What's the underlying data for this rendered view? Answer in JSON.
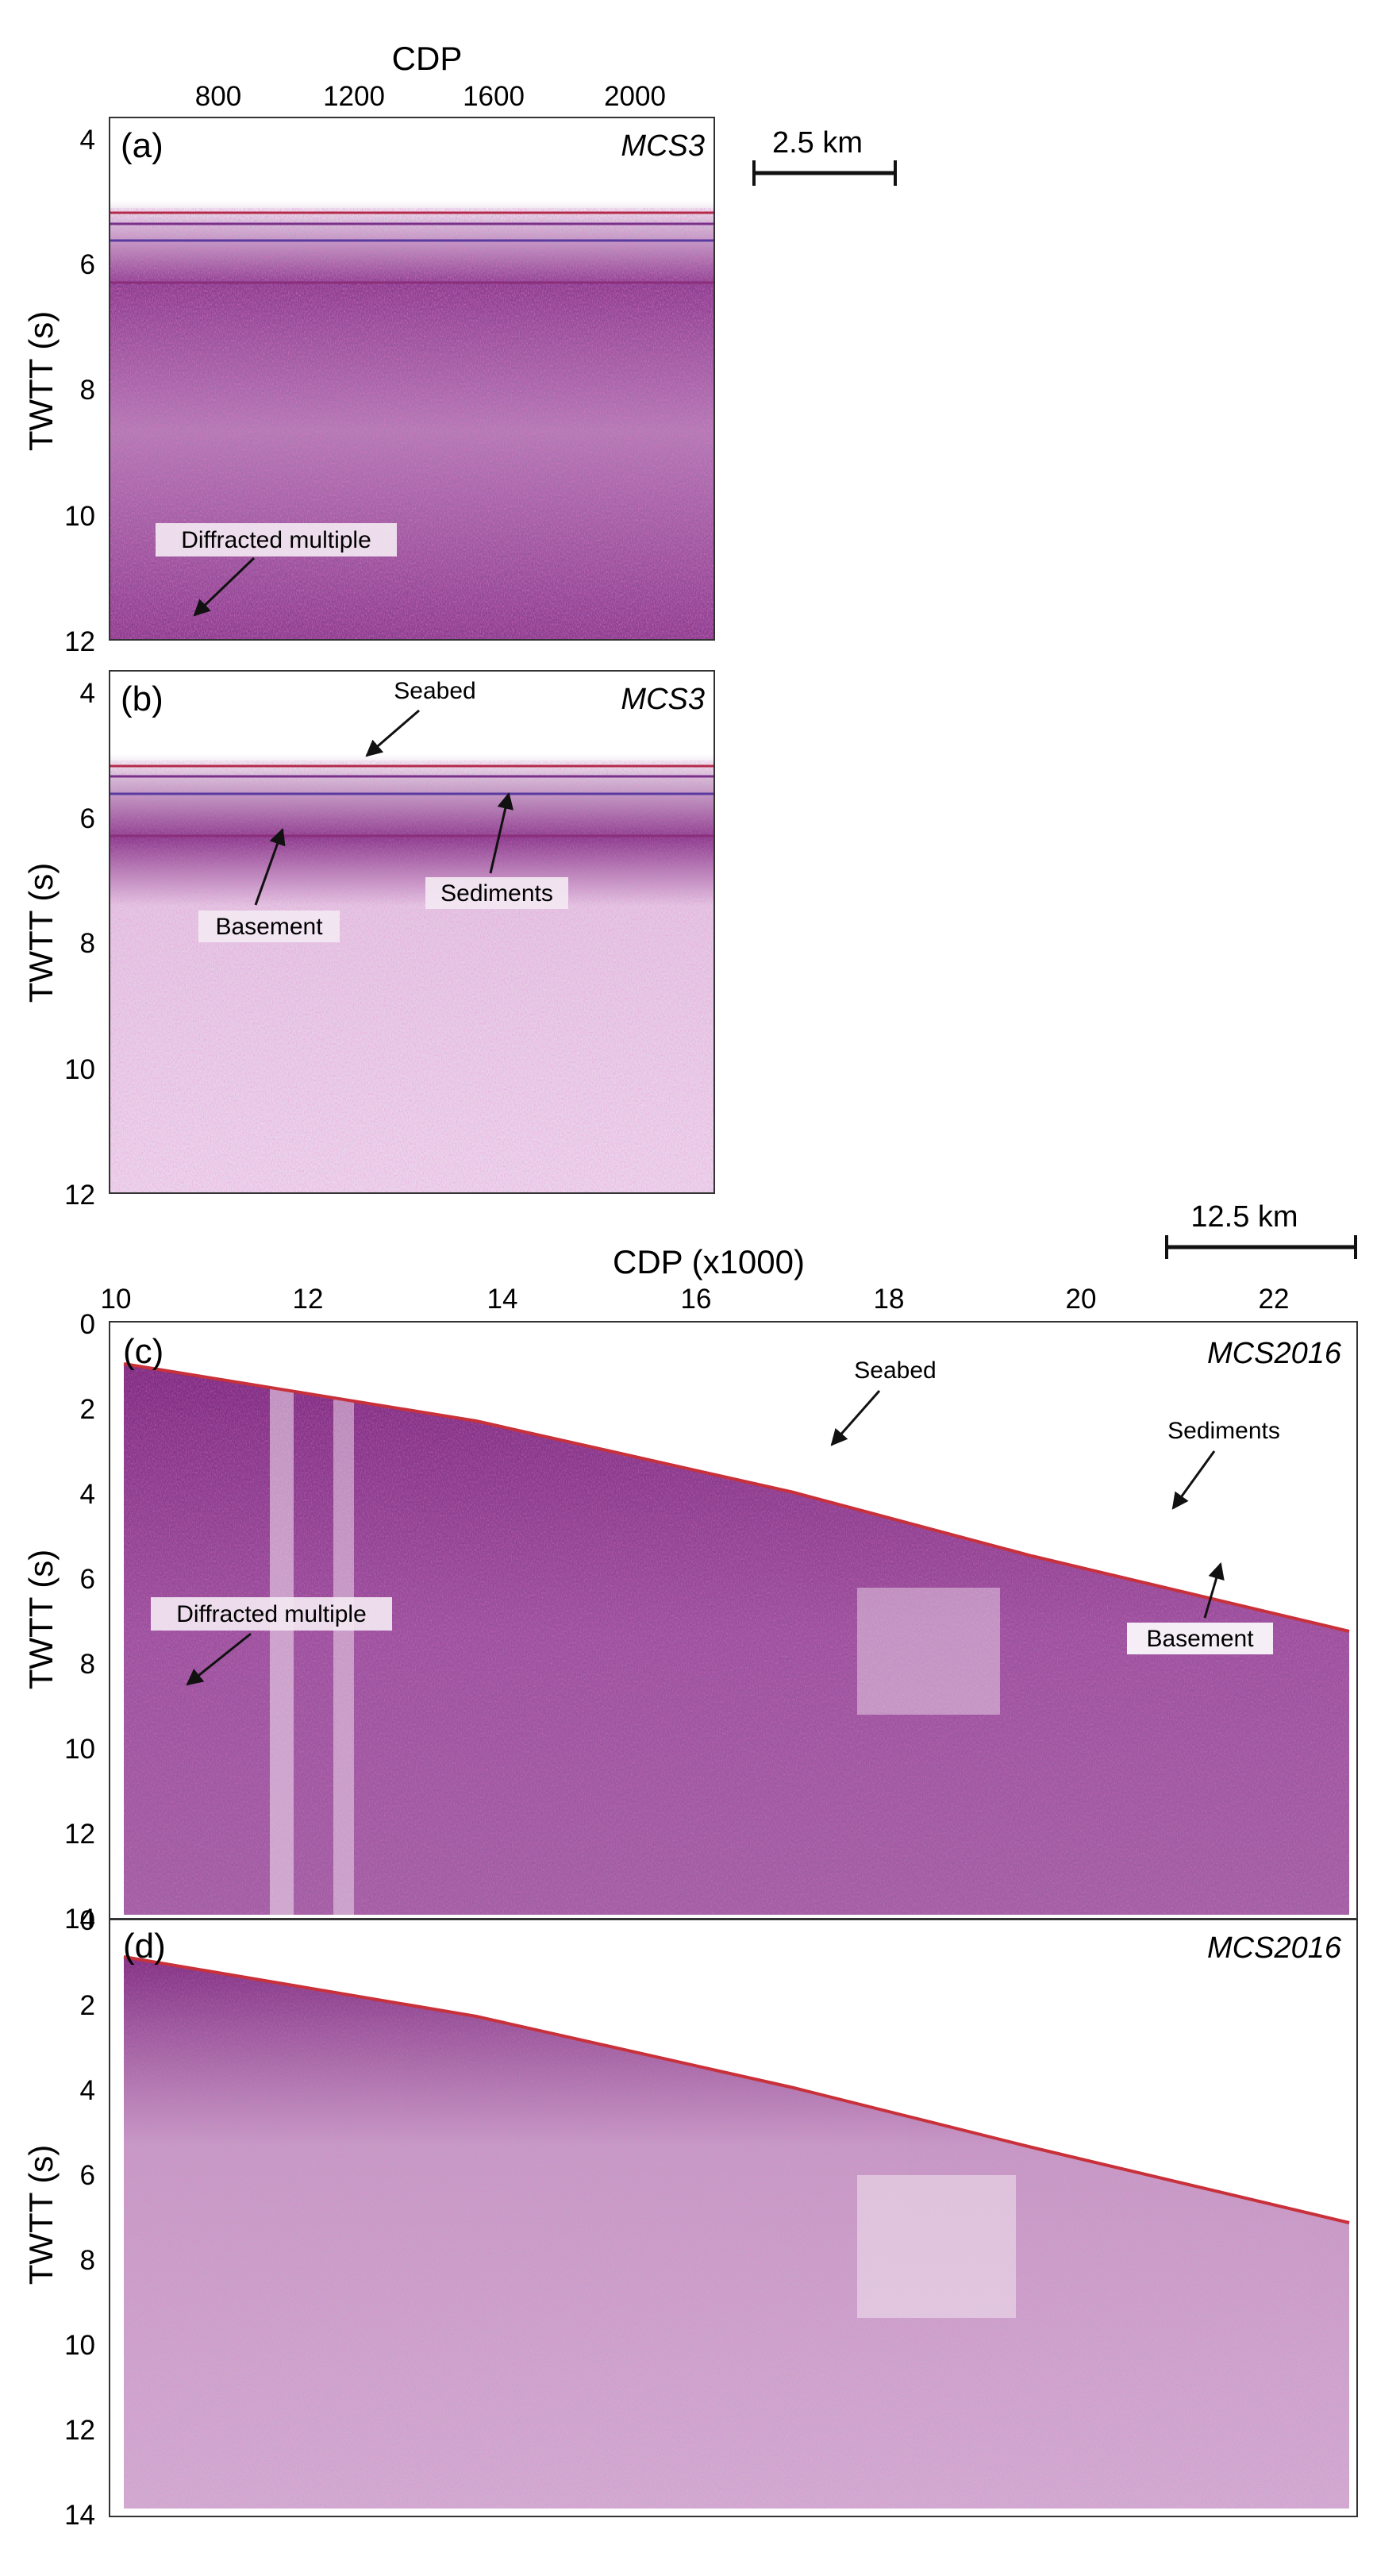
{
  "figure": {
    "scale_bars": [
      "2.5 km",
      "12.5 km"
    ],
    "top_axis": {
      "upper": {
        "title": "CDP",
        "ticks": [
          "800",
          "1200",
          "1600",
          "2000"
        ]
      },
      "lower": {
        "title": "CDP (x1000)",
        "ticks": [
          "10",
          "12",
          "14",
          "16",
          "18",
          "20",
          "22"
        ]
      }
    },
    "panels": [
      {
        "key": "a",
        "label": "(a)",
        "name": "MCS3",
        "ylabel": "TWTT (s)",
        "yticks": [
          "4",
          "6",
          "8",
          "10",
          "12"
        ],
        "annotations": [
          "Diffracted multiple"
        ]
      },
      {
        "key": "b",
        "label": "(b)",
        "name": "MCS3",
        "ylabel": "TWTT (s)",
        "yticks": [
          "4",
          "6",
          "8",
          "10",
          "12"
        ],
        "annotations": [
          "Seabed",
          "Basement",
          "Sediments"
        ]
      },
      {
        "key": "c",
        "label": "(c)",
        "name": "MCS2016",
        "ylabel": "TWTT (s)",
        "yticks": [
          "0",
          "2",
          "4",
          "6",
          "8",
          "10",
          "12",
          "14"
        ],
        "annotations": [
          "Seabed",
          "Sediments",
          "Diffracted multiple",
          "Basement"
        ]
      },
      {
        "key": "d",
        "label": "(d)",
        "name": "MCS2016",
        "ylabel": "TWTT (s)",
        "yticks": [
          "0",
          "2",
          "4",
          "6",
          "8",
          "10",
          "12",
          "14"
        ],
        "annotations": []
      }
    ],
    "colors": {
      "seismic_purple": "#7a1f7a",
      "seismic_red": "#c8303a",
      "seismic_blue": "#4a4ac0",
      "background_pink": "#f1dced"
    }
  }
}
